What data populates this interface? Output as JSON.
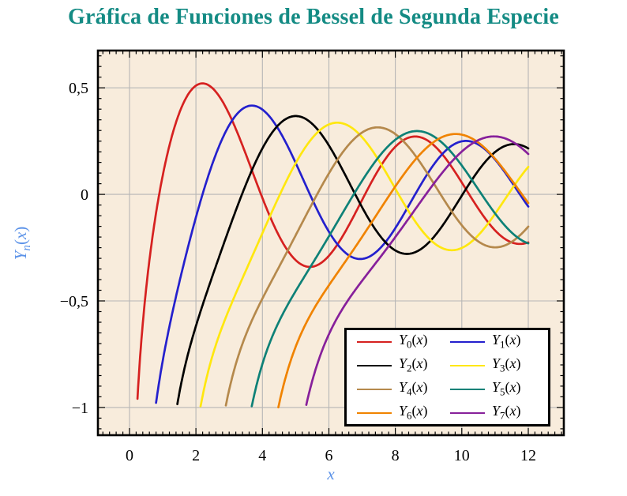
{
  "title": "Gráfica de Funciones de Bessel de Segunda Especie",
  "colors": {
    "title": "#148b84",
    "axis_label": "#5b92e8",
    "plot_background": "#f8ecdc",
    "grid": "#b6b6b6",
    "frame": "#000000",
    "tick": "#000000",
    "tick_label": "#000000",
    "legend_background": "#ffffff",
    "legend_border": "#000000"
  },
  "chart_data": {
    "type": "line",
    "title": "Gráfica de Funciones de Bessel de Segunda Especie",
    "xlabel": "x",
    "ylabel": "Y_n(x)",
    "xlim": [
      -0.95,
      13.07
    ],
    "ylim": [
      -1.13,
      0.675
    ],
    "x_tick_values": [
      0,
      2,
      4,
      6,
      8,
      10,
      12
    ],
    "x_tick_labels": [
      "0",
      "2",
      "4",
      "6",
      "8",
      "10",
      "12"
    ],
    "y_tick_values": [
      0.5,
      0,
      -0.5,
      -1
    ],
    "y_tick_labels": [
      "0,5",
      "0",
      "−0,5",
      "−1"
    ],
    "x_minor_step": 0.2,
    "y_minor_step": 0.05,
    "grid": "major",
    "legend_position": "bottom-right",
    "legend_columns": 2,
    "generator": "bessel-second-kind",
    "clip_y_min": -1.0,
    "x_data_min": 0.02,
    "x_data_max": 12,
    "series": [
      {
        "label": "Y_0(x)",
        "order": 0,
        "color": "#d62120",
        "x_start": 0.25,
        "x_end": 12,
        "first_peak": {
          "x": 2.2,
          "y": 0.52
        }
      },
      {
        "label": "Y_1(x)",
        "order": 1,
        "color": "#2420cd",
        "x_start": 0.92,
        "x_end": 12,
        "first_peak": {
          "x": 3.7,
          "y": 0.42
        }
      },
      {
        "label": "Y_2(x)",
        "order": 2,
        "color": "#000000",
        "x_start": 1.48,
        "x_end": 12,
        "first_peak": {
          "x": 5.0,
          "y": 0.37
        }
      },
      {
        "label": "Y_3(x)",
        "order": 3,
        "color": "#ffe70f",
        "x_start": 2.2,
        "x_end": 12,
        "first_peak": {
          "x": 6.3,
          "y": 0.33
        }
      },
      {
        "label": "Y_4(x)",
        "order": 4,
        "color": "#b5894c",
        "x_start": 2.95,
        "x_end": 12,
        "first_peak": {
          "x": 7.5,
          "y": 0.31
        }
      },
      {
        "label": "Y_5(x)",
        "order": 5,
        "color": "#0e8177",
        "x_start": 3.75,
        "x_end": 12,
        "first_peak": {
          "x": 8.6,
          "y": 0.3
        }
      },
      {
        "label": "Y_6(x)",
        "order": 6,
        "color": "#f08300",
        "x_start": 4.55,
        "x_end": 12,
        "first_peak": {
          "x": 9.8,
          "y": 0.28
        }
      },
      {
        "label": "Y_7(x)",
        "order": 7,
        "color": "#87209b",
        "x_start": 5.1,
        "x_end": 12,
        "first_peak": {
          "x": 11.0,
          "y": 0.27
        }
      }
    ]
  }
}
